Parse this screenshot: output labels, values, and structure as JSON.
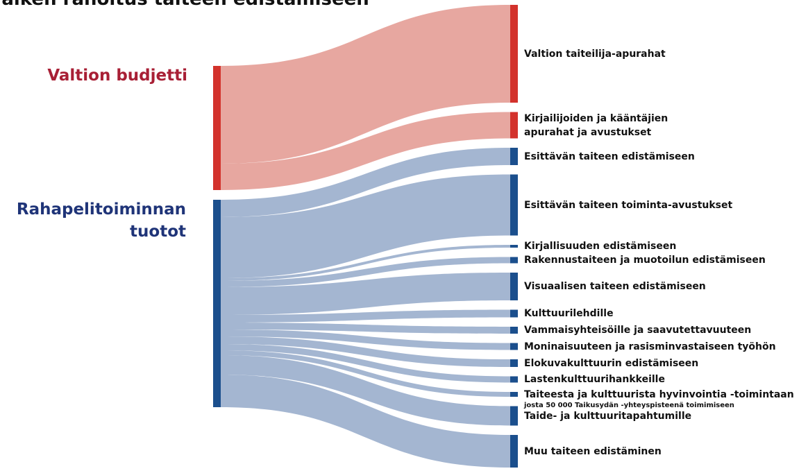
{
  "chart_data": {
    "type": "sankey",
    "title": "Taiken rahoitus taiteen edistämiseen",
    "sources": [
      {
        "name": "Valtion budjetti",
        "color": "#d3322c",
        "label_color": "#a81f35",
        "link_color": "#e6a29b"
      },
      {
        "name": "Rahapelitoiminnan tuotot",
        "color": "#1b4f8d",
        "label_color": "#1f3478",
        "link_color": "#9fb2cf"
      }
    ],
    "targets": [
      {
        "name": "Valtion taiteilija-apurahat",
        "source": 0,
        "value": 141
      },
      {
        "name": "Kirjailijoiden ja kääntäjien apurahat ja avustukset",
        "source": 0,
        "value": 38
      },
      {
        "name": "Esittävän taiteen edistämiseen",
        "source": 1,
        "value": 25
      },
      {
        "name": "Esittävän taiteen toiminta-avustukset",
        "source": 1,
        "value": 88
      },
      {
        "name": "Kirjallisuuden edistämiseen",
        "source": 1,
        "value": 4
      },
      {
        "name": "Rakennustaiteen ja muotoilun edistämiseen",
        "source": 1,
        "value": 9
      },
      {
        "name": "Visuaalisen taiteen edistämiseen",
        "source": 1,
        "value": 40
      },
      {
        "name": "Kulttuurilehdille",
        "source": 1,
        "value": 11
      },
      {
        "name": "Vammaisyhteisöille ja saavutettavuuteen",
        "source": 1,
        "value": 10
      },
      {
        "name": "Moninaisuuteen ja rasisminvastaiseen työhön",
        "source": 1,
        "value": 10
      },
      {
        "name": "Elokuvakulttuurin edistämiseen",
        "source": 1,
        "value": 11
      },
      {
        "name": "Lastenkulttuurihankkeille",
        "source": 1,
        "value": 9
      },
      {
        "name": "Taiteesta ja kulttuurista hyvinvointia -toimintaan",
        "note": "josta 50 000 Taikusydän -yhteyspisteenä toimimiseen",
        "source": 1,
        "value": 7
      },
      {
        "name": "Taide- ja kulttuuritapahtumille",
        "source": 1,
        "value": 28
      },
      {
        "name": "Muu taiteen edistäminen",
        "source": 1,
        "value": 47
      }
    ]
  }
}
